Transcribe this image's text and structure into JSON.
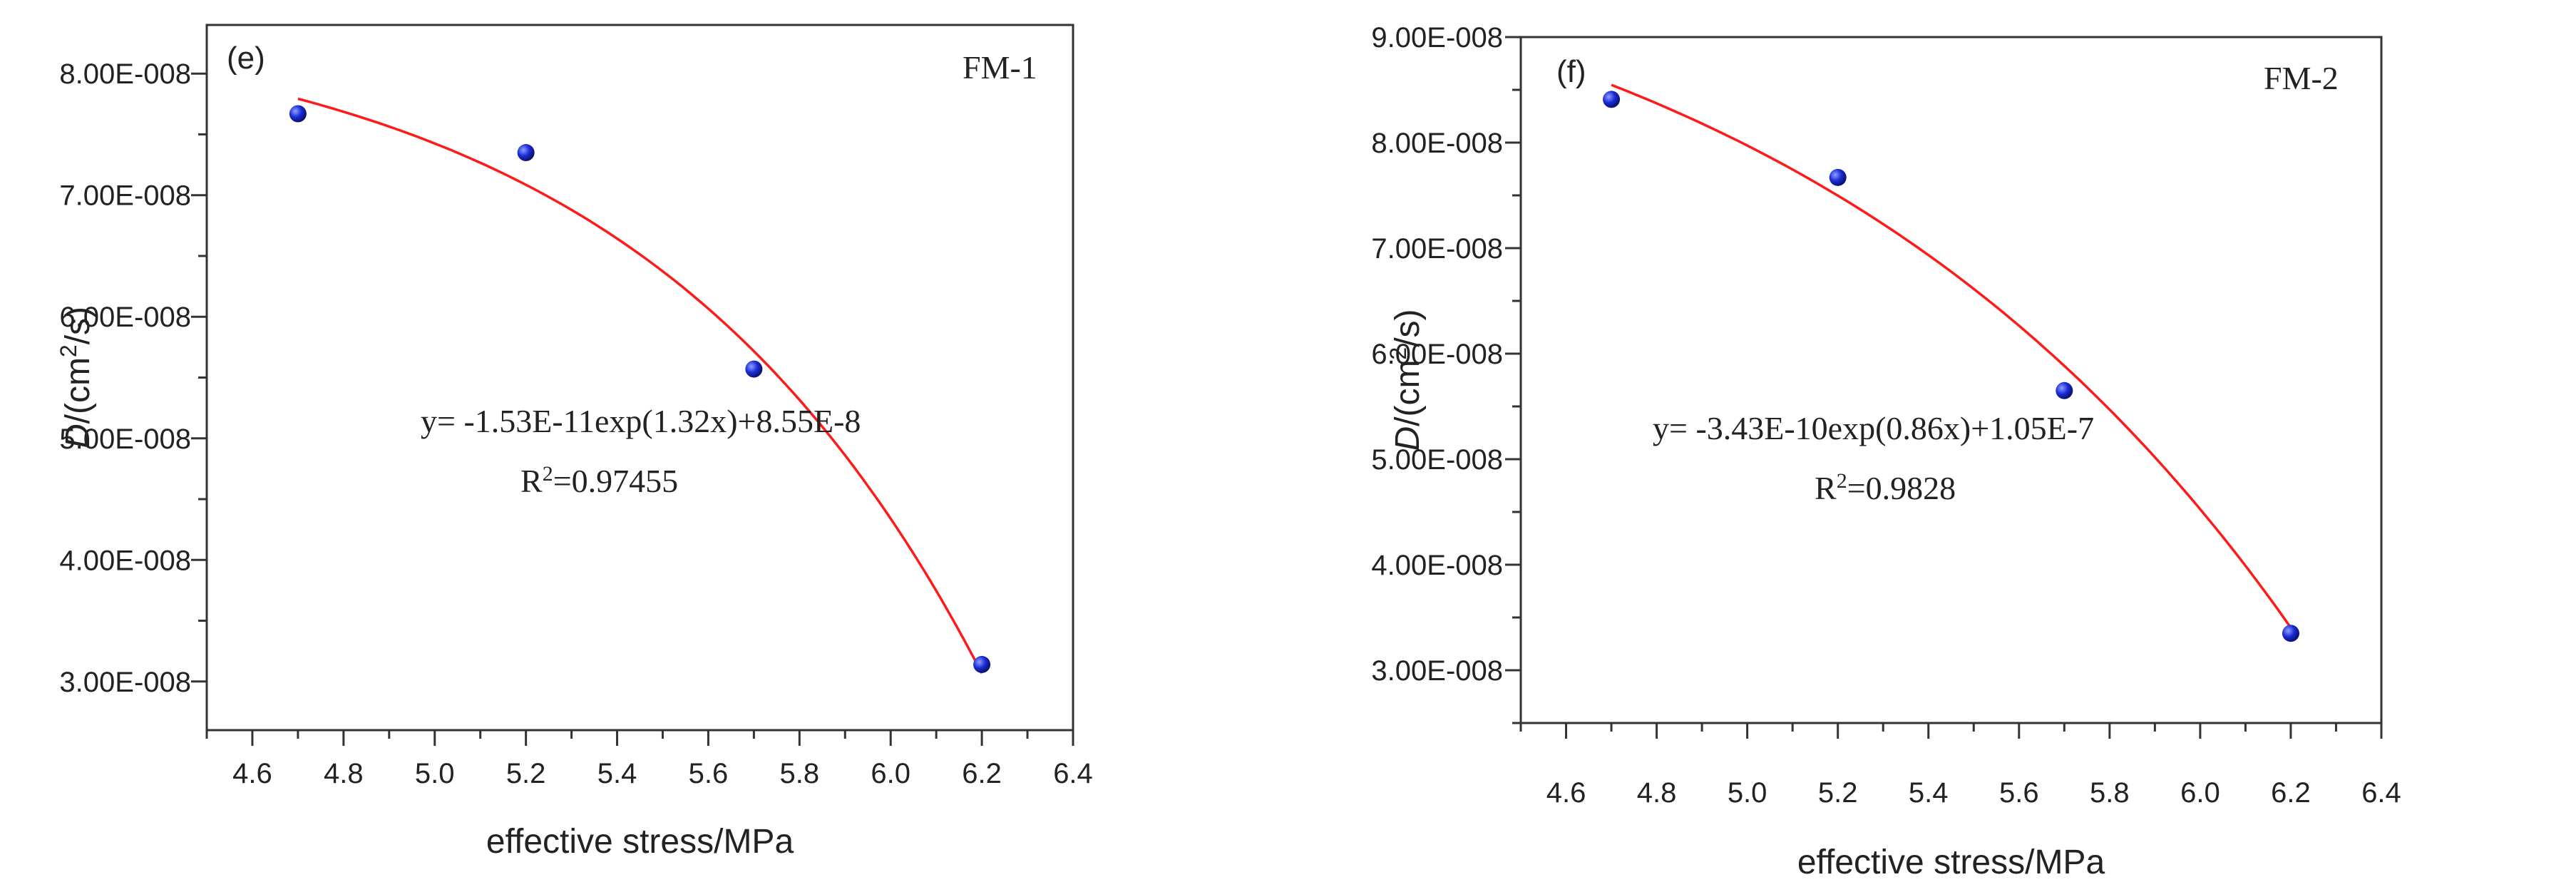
{
  "chart_data": [
    {
      "type": "scatter",
      "panel_label": "(e)",
      "sample": "FM-1",
      "xlabel": "effective stress/MPa",
      "ylabel": {
        "italic": "D",
        "prefix": "/(cm",
        "sup": "2",
        "suffix": "/s)"
      },
      "xlim": [
        4.5,
        6.4
      ],
      "ylim": [
        2.6e-08,
        8.4e-08
      ],
      "x_ticks": [
        4.6,
        4.8,
        5.0,
        5.2,
        5.4,
        5.6,
        5.8,
        6.0,
        6.2,
        6.4
      ],
      "x_tick_labels": [
        "4.6",
        "4.8",
        "5.0",
        "5.2",
        "5.4",
        "5.6",
        "5.8",
        "6.0",
        "6.2",
        "6.4"
      ],
      "y_ticks": [
        3e-08,
        4e-08,
        5e-08,
        6e-08,
        7e-08,
        8e-08
      ],
      "y_tick_labels": [
        "3.00E-008",
        "4.00E-008",
        "5.00E-008",
        "6.00E-008",
        "7.00E-008",
        "8.00E-008"
      ],
      "series": [
        {
          "name": "FM-1",
          "x": [
            4.7,
            5.2,
            5.7,
            6.2
          ],
          "y": [
            7.67e-08,
            7.35e-08,
            5.57e-08,
            3.14e-08
          ]
        }
      ],
      "fit": {
        "equation": "y= -1.53E-11exp(1.32x)+8.55E-8",
        "r2_label": "R",
        "r2_sup": "2",
        "r2_value": "=0.97455",
        "a": -1.53e-11,
        "b": 1.32,
        "c": 8.55e-08,
        "x_range": [
          4.7,
          6.2
        ]
      }
    },
    {
      "type": "scatter",
      "panel_label": "(f)",
      "sample": "FM-2",
      "xlabel": "effective stress/MPa",
      "ylabel": {
        "italic": "D",
        "prefix": "/(cm",
        "sup": "2",
        "suffix": "/s)"
      },
      "xlim": [
        4.5,
        6.4
      ],
      "ylim": [
        2.5e-08,
        9e-08
      ],
      "x_ticks": [
        4.6,
        4.8,
        5.0,
        5.2,
        5.4,
        5.6,
        5.8,
        6.0,
        6.2,
        6.4
      ],
      "x_tick_labels": [
        "4.6",
        "4.8",
        "5.0",
        "5.2",
        "5.4",
        "5.6",
        "5.8",
        "6.0",
        "6.2",
        "6.4"
      ],
      "y_ticks": [
        3e-08,
        4e-08,
        5e-08,
        6e-08,
        7e-08,
        8e-08,
        9e-08
      ],
      "y_tick_labels": [
        "3.00E-008",
        "4.00E-008",
        "5.00E-008",
        "6.00E-008",
        "7.00E-008",
        "8.00E-008",
        "9.00E-008"
      ],
      "series": [
        {
          "name": "FM-2",
          "x": [
            4.7,
            5.2,
            5.7,
            6.2
          ],
          "y": [
            8.41e-08,
            7.67e-08,
            5.65e-08,
            3.35e-08
          ]
        }
      ],
      "fit": {
        "equation": "y= -3.43E-10exp(0.86x)+1.05E-7",
        "r2_label": "R",
        "r2_sup": "2",
        "r2_value": "=0.9828",
        "a": -3.43e-10,
        "b": 0.86,
        "c": 1.05e-07,
        "x_range": [
          4.7,
          6.2
        ]
      }
    }
  ],
  "colors": {
    "point_fill": "#1a2bd6",
    "point_highlight": "#8fa0ff",
    "fit_line": "#ff1a1a",
    "axis": "#333333"
  }
}
